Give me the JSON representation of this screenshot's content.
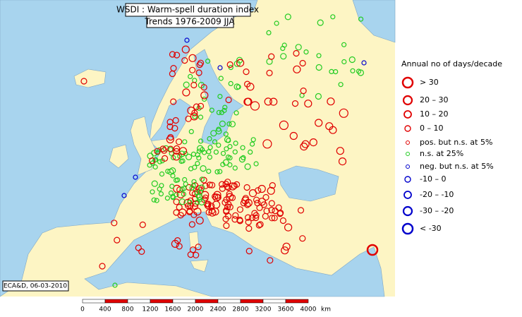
{
  "map": {
    "title": "WSDI : Warm-spell duration index",
    "subtitle": "Trends 1976-2009 JJA",
    "credit": "ECA&D, 06-03-2010",
    "legend": {
      "title": "Annual no of days/decade",
      "items": [
        "> 30",
        "20 – 30",
        "10 – 20",
        "0 – 10",
        "pos. but n.s. at 5%",
        "n.s. at 25%",
        "neg. but n.s. at 5%",
        "-10 – 0",
        "-20 – -10",
        "-30 – -20",
        "< -30"
      ]
    },
    "scale": {
      "labels": [
        "0",
        "400",
        "800",
        "1200",
        "1600",
        "2000",
        "2400",
        "2800",
        "3200",
        "3600",
        "4000"
      ],
      "unit": "km"
    }
  }
}
